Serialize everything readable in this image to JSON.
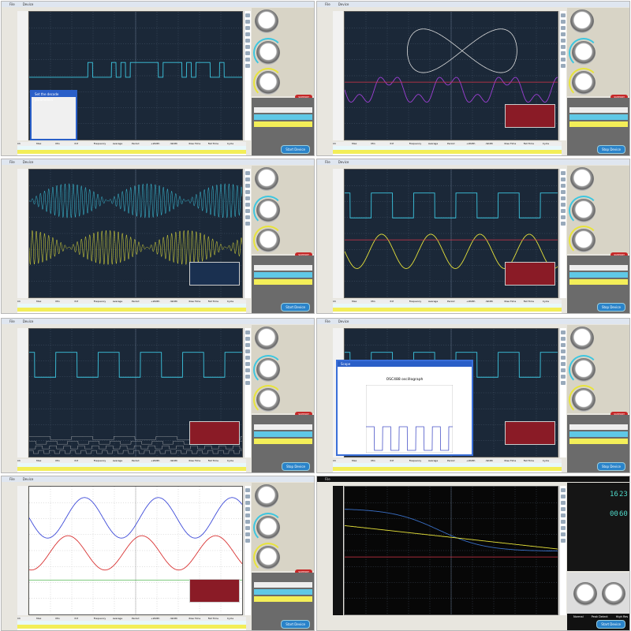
{
  "menu": {
    "file": "File",
    "device": "Device"
  },
  "colors": {
    "ch1": "#3cc6e0",
    "ch2": "#e8e43a",
    "ref": "#d8344a",
    "purple": "#a040d8",
    "support": "#c62828"
  },
  "measure_headers": [
    "Ch",
    "Max",
    "Min",
    "P-P",
    "Frequency",
    "Average",
    "Period",
    "+Width",
    "-Width",
    "Rise Time",
    "Fall Time",
    "Cycle"
  ],
  "panels": [
    {
      "id": "p1",
      "theme": "navy",
      "button": "Start Device",
      "traces": [
        "digital-burst"
      ],
      "dialog": "Set the decode parameters",
      "fft": false
    },
    {
      "id": "p2",
      "theme": "navy",
      "button": "Stop Device",
      "traces": [
        "lissajous",
        "harmonic-wave",
        "ref-line"
      ],
      "fft": true
    },
    {
      "id": "p3",
      "theme": "navy",
      "button": "Start Device",
      "traces": [
        "am-cyan",
        "am-yellow"
      ],
      "fft": true
    },
    {
      "id": "p4",
      "theme": "navy",
      "button": "Stop Device",
      "traces": [
        "square-cyan",
        "sine-yellow",
        "ref-line"
      ],
      "fft": true
    },
    {
      "id": "p5",
      "theme": "navy",
      "button": "Stop Device",
      "traces": [
        "square-cyan",
        "digital-lanes"
      ],
      "fft": true
    },
    {
      "id": "p6",
      "theme": "navy",
      "button": "Stop Device",
      "traces": [
        "square-cyan"
      ],
      "dialog": "OSC488 oscillograph",
      "fft": true
    },
    {
      "id": "p7",
      "theme": "white",
      "button": "Start Device",
      "traces": [
        "sine-blue",
        "sine-red",
        "sine-green"
      ],
      "fft": true
    },
    {
      "id": "p8",
      "theme": "black",
      "button": "Start Device",
      "traces": [
        "decay-blue",
        "line-yellow",
        "ref-line"
      ],
      "fft": false
    }
  ],
  "support_label": "SUPPORT",
  "clock": {
    "hour": "16",
    "minute": "23",
    "sec_a": "00",
    "sec_b": "60"
  },
  "acquisition": [
    "Normal",
    "Peak Detect",
    "High Res"
  ]
}
